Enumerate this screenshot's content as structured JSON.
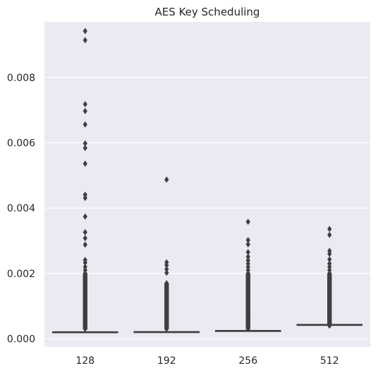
{
  "chart_data": {
    "type": "box",
    "title": "AES Key Scheduling",
    "xlabel": "",
    "ylabel": "",
    "categories": [
      "128",
      "192",
      "256",
      "512"
    ],
    "ylim": [
      -0.00025,
      0.0097
    ],
    "yticks": [
      0.0,
      0.002,
      0.004,
      0.006,
      0.008
    ],
    "ytick_labels": [
      "0.000",
      "0.002",
      "0.004",
      "0.006",
      "0.008"
    ],
    "grid": true,
    "boxes": [
      {
        "category": "128",
        "min": 0.00018,
        "q1": 0.000195,
        "median": 0.000205,
        "q3": 0.000215,
        "max": 0.000225,
        "outliers": [
          0.00942,
          0.00914,
          0.00718,
          0.00697,
          0.00656,
          0.00598,
          0.00584,
          0.00536,
          0.00441,
          0.00431,
          0.00374,
          0.00326,
          0.00308,
          0.00288,
          0.00241,
          0.00233,
          0.0022,
          0.0021,
          0.002,
          0.0019,
          0.0018,
          0.0017,
          0.0016,
          0.0015,
          0.0014,
          0.0013,
          0.0012,
          0.0011,
          0.001,
          0.0009,
          0.0008,
          0.0007,
          0.0006,
          0.0005,
          0.0004,
          0.0003
        ]
      },
      {
        "category": "192",
        "min": 0.000185,
        "q1": 0.0002,
        "median": 0.00021,
        "q3": 0.00022,
        "max": 0.00023,
        "outliers": [
          0.00487,
          0.00234,
          0.00225,
          0.00213,
          0.00202,
          0.0017,
          0.0016,
          0.0015,
          0.0014,
          0.0013,
          0.0012,
          0.0011,
          0.001,
          0.0009,
          0.0008,
          0.0007,
          0.0006,
          0.0005,
          0.0004,
          0.0003
        ]
      },
      {
        "category": "256",
        "min": 0.00022,
        "q1": 0.000235,
        "median": 0.000245,
        "q3": 0.000255,
        "max": 0.000265,
        "outliers": [
          0.00358,
          0.00302,
          0.00289,
          0.00265,
          0.00251,
          0.0024,
          0.0023,
          0.0022,
          0.0021,
          0.002,
          0.0019,
          0.0018,
          0.0017,
          0.0016,
          0.0015,
          0.0014,
          0.0013,
          0.0012,
          0.0011,
          0.001,
          0.0009,
          0.0008,
          0.0007,
          0.0006,
          0.0005,
          0.0004,
          0.0003
        ]
      },
      {
        "category": "512",
        "min": 0.0004,
        "q1": 0.00042,
        "median": 0.00043,
        "q3": 0.00044,
        "max": 0.00045,
        "outliers": [
          0.00336,
          0.00318,
          0.00269,
          0.0026,
          0.00243,
          0.0023,
          0.0022,
          0.0021,
          0.002,
          0.0019,
          0.0018,
          0.0017,
          0.0016,
          0.0015,
          0.0014,
          0.0013,
          0.0012,
          0.0011,
          0.001,
          0.0009,
          0.0008,
          0.0007,
          0.0006,
          0.0005,
          0.0004
        ]
      }
    ],
    "colors": {
      "plot_background": "#eaeaf2",
      "grid": "#ffffff",
      "box_fill": "#5975a4",
      "box_edge": "#3f3f3f",
      "outlier": "#3f3f3f",
      "text": "#262626"
    }
  }
}
